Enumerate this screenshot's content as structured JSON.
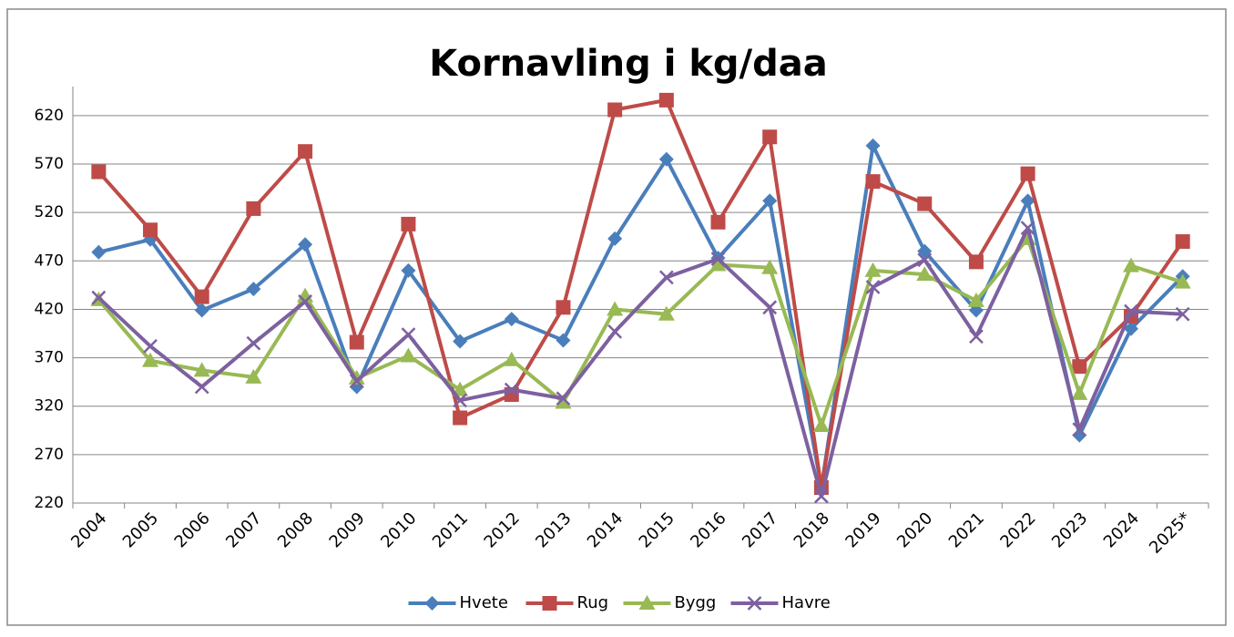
{
  "chart_data": {
    "type": "line",
    "title": "Kornavling i kg/daa",
    "categories": [
      "2004",
      "2005",
      "2006",
      "2007",
      "2008",
      "2009",
      "2010",
      "2011",
      "2012",
      "2013",
      "2014",
      "2015",
      "2016",
      "2017",
      "2018",
      "2019",
      "2020",
      "2021",
      "2022",
      "2023",
      "2024",
      "2025*"
    ],
    "series": [
      {
        "name": "Hvete",
        "color": "#4a7ebb",
        "marker": "diamond",
        "values": [
          479,
          492,
          419,
          441,
          487,
          340,
          460,
          387,
          410,
          388,
          493,
          575,
          473,
          532,
          236,
          589,
          480,
          419,
          532,
          290,
          400,
          454
        ]
      },
      {
        "name": "Rug",
        "color": "#be4b48",
        "marker": "square",
        "values": [
          562,
          502,
          433,
          524,
          583,
          386,
          508,
          308,
          332,
          422,
          626,
          636,
          510,
          598,
          236,
          552,
          529,
          469,
          560,
          361,
          413,
          490
        ]
      },
      {
        "name": "Bygg",
        "color": "#98b954",
        "marker": "triangle",
        "values": [
          430,
          367,
          357,
          350,
          434,
          349,
          372,
          337,
          368,
          324,
          420,
          415,
          466,
          463,
          300,
          460,
          456,
          429,
          493,
          333,
          465,
          448
        ]
      },
      {
        "name": "Havre",
        "color": "#7d60a0",
        "marker": "x",
        "values": [
          432,
          382,
          340,
          385,
          428,
          346,
          394,
          326,
          337,
          328,
          397,
          453,
          472,
          422,
          227,
          443,
          471,
          392,
          504,
          296,
          418,
          415
        ]
      }
    ],
    "ylim": [
      220,
      650
    ],
    "yticks": [
      220,
      270,
      320,
      370,
      420,
      470,
      520,
      570,
      620
    ],
    "grid": true,
    "legend": "bottom"
  }
}
